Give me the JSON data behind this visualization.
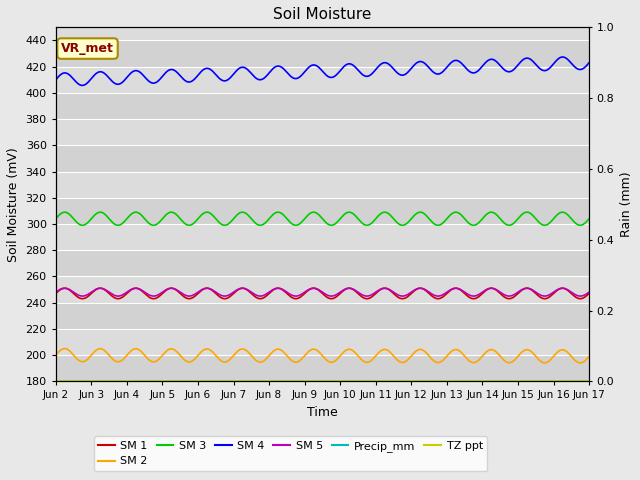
{
  "title": "Soil Moisture",
  "ylabel_left": "Soil Moisture (mV)",
  "ylabel_right": "Rain (mm)",
  "xlabel": "Time",
  "ylim_left": [
    180,
    450
  ],
  "ylim_right": [
    0.0,
    1.0
  ],
  "yticks_left": [
    180,
    200,
    220,
    240,
    260,
    280,
    300,
    320,
    340,
    360,
    380,
    400,
    420,
    440
  ],
  "yticks_right": [
    0.0,
    0.2,
    0.4,
    0.6,
    0.8,
    1.0
  ],
  "xtick_labels": [
    "Jun 2",
    "Jun 3",
    "Jun 4",
    "Jun 5",
    "Jun 6",
    "Jun 7",
    "Jun 8",
    "Jun 9",
    "Jun 10",
    "Jun 11",
    "Jun 12",
    "Jun 13",
    "Jun 14",
    "Jun 15",
    "Jun 16",
    "Jun 17"
  ],
  "bg_color": "#dcdcdc",
  "fig_bg_color": "#e8e8e8",
  "gridline_color": "#ffffff",
  "band_color_dark": "#d2d2d2",
  "band_color_light": "#dcdcdc",
  "annotation_text": "VR_met",
  "annotation_bg": "#ffffcc",
  "annotation_border": "#aa8800",
  "annotation_text_color": "#8b0000",
  "sm1_color": "#cc0000",
  "sm2_color": "#ffa500",
  "sm3_color": "#00cc00",
  "sm4_color": "#0000ff",
  "sm5_color": "#bb00bb",
  "precip_color": "#00bbbb",
  "tz_color": "#cccc00",
  "legend_labels": [
    "SM 1",
    "SM 2",
    "SM 3",
    "SM 4",
    "SM 5",
    "Precip_mm",
    "TZ ppt"
  ],
  "sm1_base": 247,
  "sm1_amp": 4,
  "sm1_period": 1.0,
  "sm1_trend": 0,
  "sm2_base": 200,
  "sm2_amp": 5,
  "sm2_period": 1.0,
  "sm2_trend": -1,
  "sm3_base": 304,
  "sm3_amp": 5,
  "sm3_period": 1.0,
  "sm3_trend": 0,
  "sm4_base": 410,
  "sm4_amp": 5,
  "sm4_period": 1.0,
  "sm4_trend": 13,
  "sm5_base": 248,
  "sm5_amp": 3,
  "sm5_period": 1.0,
  "sm5_trend": 0,
  "n_days": 15,
  "pts_per_day": 24
}
